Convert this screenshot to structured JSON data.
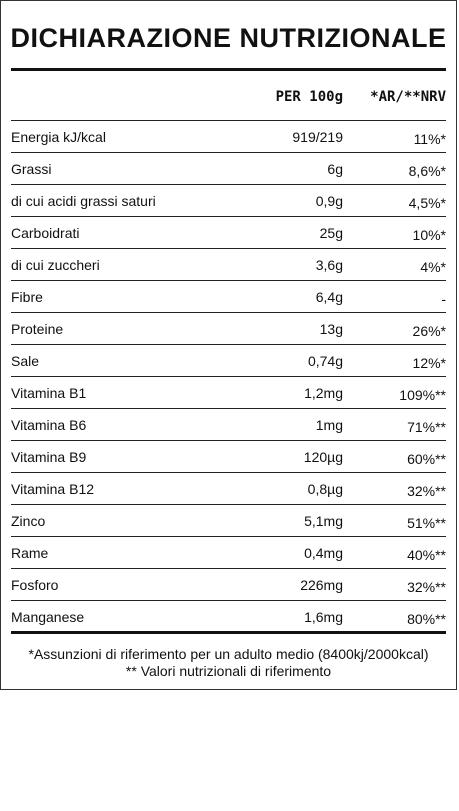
{
  "title": "DICHIARAZIONE NUTRIZIONALE",
  "header": {
    "per": "PER 100g",
    "ar": "*AR/**NRV"
  },
  "rows": [
    {
      "name": "Energia kJ/kcal",
      "per": "919/219",
      "ar": "11%*"
    },
    {
      "name": "Grassi",
      "per": "6g",
      "ar": "8,6%*"
    },
    {
      "name": "di cui acidi grassi saturi",
      "per": "0,9g",
      "ar": "4,5%*"
    },
    {
      "name": "Carboidrati",
      "per": "25g",
      "ar": "10%*"
    },
    {
      "name": "di cui zuccheri",
      "per": "3,6g",
      "ar": "4%*"
    },
    {
      "name": "Fibre",
      "per": "6,4g",
      "ar": "-"
    },
    {
      "name": "Proteine",
      "per": "13g",
      "ar": "26%*"
    },
    {
      "name": "Sale",
      "per": "0,74g",
      "ar": "12%*"
    },
    {
      "name": "Vitamina B1",
      "per": "1,2mg",
      "ar": "109%**"
    },
    {
      "name": "Vitamina B6",
      "per": "1mg",
      "ar": "71%**"
    },
    {
      "name": "Vitamina B9",
      "per": "120µg",
      "ar": "60%**"
    },
    {
      "name": "Vitamina B12",
      "per": "0,8µg",
      "ar": "32%**"
    },
    {
      "name": "Zinco",
      "per": "5,1mg",
      "ar": "51%**"
    },
    {
      "name": "Rame",
      "per": "0,4mg",
      "ar": "40%**"
    },
    {
      "name": "Fosforo",
      "per": "226mg",
      "ar": "32%**"
    },
    {
      "name": "Manganese",
      "per": "1,6mg",
      "ar": "80%**"
    }
  ],
  "footnotes": {
    "ar": "*Assunzioni di riferimento per un adulto medio (8400kj/2000kcal)",
    "nrv": "** Valori nutrizionali di riferimento"
  }
}
